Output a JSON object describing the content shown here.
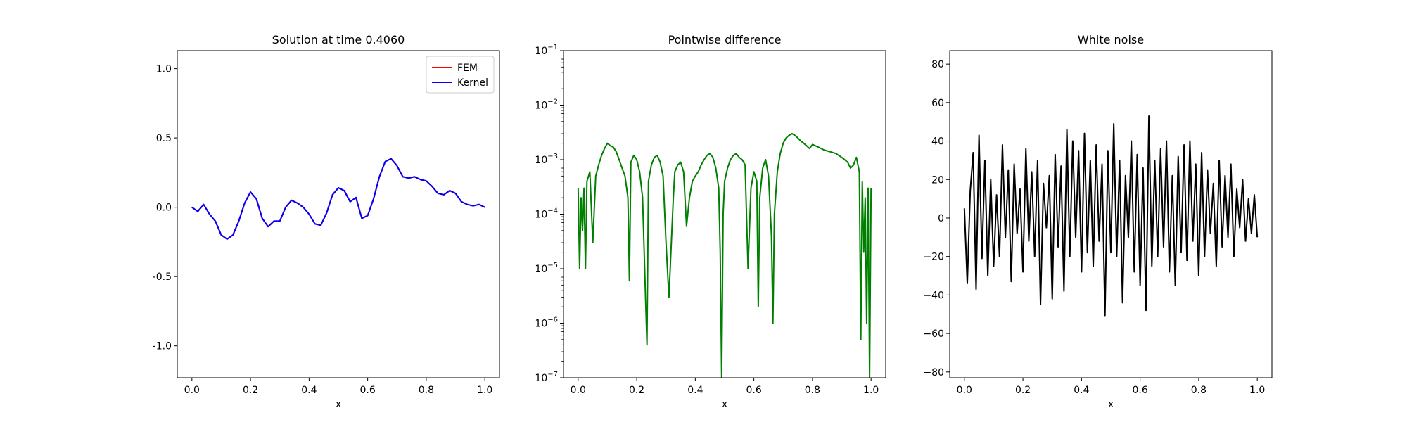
{
  "chart_data": [
    {
      "type": "line",
      "title": "Solution at time 0.4060",
      "xlabel": "x",
      "ylabel": "",
      "xlim": [
        -0.05,
        1.05
      ],
      "ylim": [
        -1.23,
        1.13
      ],
      "xticks": [
        "0.0",
        "0.2",
        "0.4",
        "0.6",
        "0.8",
        "1.0"
      ],
      "yticks": [
        "-1.0",
        "-0.5",
        "0.0",
        "0.5",
        "1.0"
      ],
      "legend": {
        "position": "top-right",
        "entries": [
          "FEM",
          "Kernel"
        ]
      },
      "grid": false,
      "series": [
        {
          "name": "FEM",
          "color": "#ff0000",
          "x": [
            0.0,
            0.02,
            0.04,
            0.06,
            0.08,
            0.1,
            0.12,
            0.14,
            0.16,
            0.18,
            0.2,
            0.22,
            0.24,
            0.26,
            0.28,
            0.3,
            0.32,
            0.34,
            0.36,
            0.38,
            0.4,
            0.42,
            0.44,
            0.46,
            0.48,
            0.5,
            0.52,
            0.54,
            0.56,
            0.58,
            0.6,
            0.62,
            0.64,
            0.66,
            0.68,
            0.7,
            0.72,
            0.74,
            0.76,
            0.78,
            0.8,
            0.82,
            0.84,
            0.86,
            0.88,
            0.9,
            0.92,
            0.94,
            0.96,
            0.98,
            1.0
          ],
          "y": [
            0.0,
            -0.03,
            0.02,
            -0.05,
            -0.1,
            -0.2,
            -0.23,
            -0.2,
            -0.1,
            0.03,
            0.11,
            0.06,
            -0.08,
            -0.14,
            -0.1,
            -0.1,
            0.0,
            0.05,
            0.03,
            0.0,
            -0.05,
            -0.12,
            -0.13,
            -0.04,
            0.09,
            0.14,
            0.12,
            0.04,
            0.07,
            -0.08,
            -0.06,
            0.06,
            0.22,
            0.33,
            0.35,
            0.3,
            0.22,
            0.21,
            0.22,
            0.2,
            0.19,
            0.15,
            0.1,
            0.09,
            0.12,
            0.1,
            0.04,
            0.02,
            0.01,
            0.02,
            0.0
          ]
        },
        {
          "name": "Kernel",
          "color": "#0000ff",
          "x": [
            0.0,
            0.02,
            0.04,
            0.06,
            0.08,
            0.1,
            0.12,
            0.14,
            0.16,
            0.18,
            0.2,
            0.22,
            0.24,
            0.26,
            0.28,
            0.3,
            0.32,
            0.34,
            0.36,
            0.38,
            0.4,
            0.42,
            0.44,
            0.46,
            0.48,
            0.5,
            0.52,
            0.54,
            0.56,
            0.58,
            0.6,
            0.62,
            0.64,
            0.66,
            0.68,
            0.7,
            0.72,
            0.74,
            0.76,
            0.78,
            0.8,
            0.82,
            0.84,
            0.86,
            0.88,
            0.9,
            0.92,
            0.94,
            0.96,
            0.98,
            1.0
          ],
          "y": [
            0.0,
            -0.03,
            0.02,
            -0.05,
            -0.1,
            -0.2,
            -0.23,
            -0.2,
            -0.1,
            0.03,
            0.11,
            0.06,
            -0.08,
            -0.14,
            -0.1,
            -0.1,
            0.0,
            0.05,
            0.03,
            0.0,
            -0.05,
            -0.12,
            -0.13,
            -0.04,
            0.09,
            0.14,
            0.12,
            0.04,
            0.07,
            -0.08,
            -0.06,
            0.06,
            0.22,
            0.33,
            0.35,
            0.3,
            0.22,
            0.21,
            0.22,
            0.2,
            0.19,
            0.15,
            0.1,
            0.09,
            0.12,
            0.1,
            0.04,
            0.02,
            0.01,
            0.02,
            0.0
          ]
        }
      ]
    },
    {
      "type": "line",
      "title": "Pointwise difference",
      "xlabel": "x",
      "ylabel": "",
      "yscale": "log",
      "xlim": [
        -0.05,
        1.05
      ],
      "ylim": [
        1e-07,
        0.1
      ],
      "xticks": [
        "0.0",
        "0.2",
        "0.4",
        "0.6",
        "0.8",
        "1.0"
      ],
      "yticks": [
        {
          "base": "10",
          "exp": "−7"
        },
        {
          "base": "10",
          "exp": "−6"
        },
        {
          "base": "10",
          "exp": "−5"
        },
        {
          "base": "10",
          "exp": "−4"
        },
        {
          "base": "10",
          "exp": "−3"
        },
        {
          "base": "10",
          "exp": "−2"
        },
        {
          "base": "10",
          "exp": "−1"
        }
      ],
      "grid": false,
      "series": [
        {
          "color": "#008000",
          "x": [
            0.0,
            0.005,
            0.01,
            0.015,
            0.02,
            0.025,
            0.03,
            0.04,
            0.05,
            0.06,
            0.07,
            0.08,
            0.09,
            0.1,
            0.11,
            0.12,
            0.13,
            0.14,
            0.15,
            0.16,
            0.17,
            0.175,
            0.18,
            0.19,
            0.2,
            0.21,
            0.22,
            0.23,
            0.235,
            0.24,
            0.25,
            0.26,
            0.27,
            0.28,
            0.29,
            0.3,
            0.31,
            0.32,
            0.325,
            0.33,
            0.34,
            0.35,
            0.36,
            0.37,
            0.38,
            0.39,
            0.4,
            0.41,
            0.42,
            0.43,
            0.44,
            0.45,
            0.46,
            0.47,
            0.48,
            0.485,
            0.49,
            0.495,
            0.5,
            0.51,
            0.52,
            0.53,
            0.54,
            0.55,
            0.56,
            0.57,
            0.58,
            0.59,
            0.6,
            0.61,
            0.615,
            0.62,
            0.63,
            0.64,
            0.65,
            0.66,
            0.665,
            0.67,
            0.68,
            0.69,
            0.7,
            0.71,
            0.72,
            0.73,
            0.74,
            0.75,
            0.76,
            0.77,
            0.78,
            0.79,
            0.8,
            0.82,
            0.84,
            0.86,
            0.88,
            0.9,
            0.92,
            0.93,
            0.94,
            0.95,
            0.96,
            0.965,
            0.97,
            0.975,
            0.98,
            0.985,
            0.99,
            0.995,
            1.0
          ],
          "y": [
            0.0003,
            1e-05,
            0.0002,
            5e-05,
            0.0003,
            1e-05,
            0.0004,
            0.0006,
            3e-05,
            0.0005,
            0.0008,
            0.0012,
            0.0016,
            0.002,
            0.0018,
            0.0017,
            0.0014,
            0.001,
            0.0007,
            0.0005,
            0.0002,
            6e-06,
            0.0009,
            0.0012,
            0.001,
            0.0006,
            0.0002,
            3e-06,
            4e-07,
            0.0004,
            0.0008,
            0.0011,
            0.0012,
            0.0009,
            0.0005,
            3e-05,
            3e-06,
            5e-05,
            0.0002,
            0.0006,
            0.0008,
            0.0009,
            0.0006,
            6e-05,
            0.0002,
            0.0004,
            0.0005,
            0.0006,
            0.0008,
            0.001,
            0.0012,
            0.0013,
            0.0011,
            0.0007,
            0.0003,
            2e-05,
            1e-07,
            0.0001,
            0.0004,
            0.0007,
            0.001,
            0.0012,
            0.0013,
            0.0011,
            0.001,
            0.0008,
            1e-05,
            0.0003,
            0.0006,
            0.0004,
            2e-06,
            0.0002,
            0.0007,
            0.001,
            0.0005,
            4e-05,
            1e-06,
            0.0001,
            0.0006,
            0.0013,
            0.002,
            0.0025,
            0.0028,
            0.003,
            0.0028,
            0.0025,
            0.0022,
            0.002,
            0.0018,
            0.0016,
            0.0019,
            0.0017,
            0.0015,
            0.0014,
            0.0013,
            0.0011,
            0.0009,
            0.0007,
            0.0008,
            0.0011,
            0.0006,
            5e-07,
            0.0004,
            2e-05,
            0.0002,
            1e-06,
            0.0003,
            1e-07,
            0.0003
          ]
        }
      ]
    },
    {
      "type": "line",
      "title": "White noise",
      "xlabel": "x",
      "ylabel": "",
      "xlim": [
        -0.05,
        1.05
      ],
      "ylim": [
        -83,
        87
      ],
      "xticks": [
        "0.0",
        "0.2",
        "0.4",
        "0.6",
        "0.8",
        "1.0"
      ],
      "yticks": [
        "−80",
        "−60",
        "−40",
        "−20",
        "0",
        "20",
        "40",
        "60",
        "80"
      ],
      "grid": false,
      "series": [
        {
          "color": "#000000",
          "x": [
            0.0,
            0.01,
            0.02,
            0.03,
            0.04,
            0.05,
            0.06,
            0.07,
            0.08,
            0.09,
            0.1,
            0.11,
            0.12,
            0.13,
            0.14,
            0.15,
            0.16,
            0.17,
            0.18,
            0.19,
            0.2,
            0.21,
            0.22,
            0.23,
            0.24,
            0.25,
            0.26,
            0.27,
            0.28,
            0.29,
            0.3,
            0.31,
            0.32,
            0.33,
            0.34,
            0.35,
            0.36,
            0.37,
            0.38,
            0.39,
            0.4,
            0.41,
            0.42,
            0.43,
            0.44,
            0.45,
            0.46,
            0.47,
            0.48,
            0.49,
            0.5,
            0.51,
            0.52,
            0.53,
            0.54,
            0.55,
            0.56,
            0.57,
            0.58,
            0.59,
            0.6,
            0.61,
            0.62,
            0.63,
            0.64,
            0.65,
            0.66,
            0.67,
            0.68,
            0.69,
            0.7,
            0.71,
            0.72,
            0.73,
            0.74,
            0.75,
            0.76,
            0.77,
            0.78,
            0.79,
            0.8,
            0.81,
            0.82,
            0.83,
            0.84,
            0.85,
            0.86,
            0.87,
            0.88,
            0.89,
            0.9,
            0.91,
            0.92,
            0.93,
            0.94,
            0.95,
            0.96,
            0.97,
            0.98,
            0.99,
            1.0
          ],
          "y": [
            5,
            -34,
            14,
            34,
            -37,
            43,
            -21,
            30,
            -30,
            20,
            -25,
            12,
            -20,
            38,
            -10,
            25,
            -33,
            28,
            -8,
            15,
            -28,
            36,
            -12,
            24,
            -20,
            30,
            -45,
            18,
            -5,
            22,
            -42,
            33,
            -15,
            27,
            -38,
            46,
            -20,
            40,
            -10,
            35,
            -28,
            44,
            -18,
            30,
            -25,
            38,
            -12,
            28,
            -51,
            35,
            -18,
            49,
            -20,
            30,
            -44,
            22,
            -10,
            40,
            -28,
            33,
            -35,
            26,
            -48,
            53,
            -25,
            30,
            -20,
            36,
            -15,
            40,
            -28,
            22,
            -35,
            32,
            -18,
            38,
            -22,
            40,
            -12,
            28,
            -30,
            34,
            -20,
            25,
            -8,
            18,
            -25,
            30,
            -15,
            22,
            -10,
            28,
            -20,
            15,
            -5,
            20,
            -12,
            10,
            -8,
            12,
            -10
          ]
        }
      ]
    }
  ]
}
